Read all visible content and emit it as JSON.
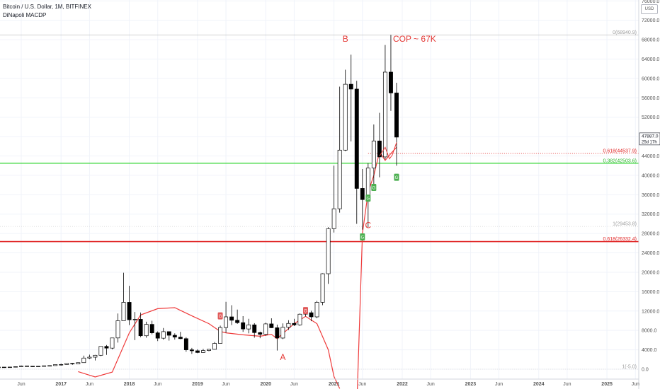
{
  "header": {
    "symbol_line": "Bitcoin / U.S. Dollar, 1M, BITFINEX",
    "indicator_line": "DiNapoli MACDP"
  },
  "currency_label": "USD",
  "current_price": {
    "value": "47887.0",
    "countdown": "25d 17h"
  },
  "colors": {
    "up": "#ffffff",
    "down": "#000000",
    "wick": "#000000",
    "macd": "#ef3b3b",
    "green_line": "#2bd52b",
    "red_line": "#e02323",
    "dotted": "#e02323",
    "marker_red": "#e05a5a",
    "marker_green": "#4caf50"
  },
  "chart_data": {
    "type": "candlestick",
    "title": "Bitcoin / U.S. Dollar, 1M, BITFINEX",
    "y_axis": {
      "min": -2000,
      "max": 76000,
      "ticks": [
        0,
        4000,
        8000,
        12000,
        16000,
        20000,
        24000,
        28000,
        32000,
        36000,
        40000,
        44000,
        48000,
        52000,
        56000,
        60000,
        64000,
        68000,
        72000,
        76000
      ],
      "tick_labels": [
        "0.0",
        "4000.0",
        "8000.0",
        "12000.0",
        "16000.0",
        "20000.0",
        "24000.0",
        "28000.0",
        "32000.0",
        "36000.0",
        "40000.0",
        "44000.0",
        "48000.0",
        "52000.0",
        "56000.0",
        "60000.0",
        "64000.0",
        "68000.0",
        "72000.0",
        "76000.0"
      ]
    },
    "x_axis": {
      "labels": [
        {
          "t": "2016-06",
          "text": "Jun"
        },
        {
          "t": "2017-01",
          "text": "2017"
        },
        {
          "t": "2017-06",
          "text": "Jun"
        },
        {
          "t": "2018-01",
          "text": "2018"
        },
        {
          "t": "2018-06",
          "text": "Jun"
        },
        {
          "t": "2019-01",
          "text": "2019"
        },
        {
          "t": "2019-06",
          "text": "Jun"
        },
        {
          "t": "2020-01",
          "text": "2020"
        },
        {
          "t": "2020-06",
          "text": "Jun"
        },
        {
          "t": "2021-01",
          "text": "2021"
        },
        {
          "t": "2021-06",
          "text": "Jun"
        },
        {
          "t": "2022-01",
          "text": "2022"
        },
        {
          "t": "2022-06",
          "text": "Jun"
        },
        {
          "t": "2023-01",
          "text": "2023"
        },
        {
          "t": "2023-06",
          "text": "Jun"
        },
        {
          "t": "2024-01",
          "text": "2024"
        },
        {
          "t": "2024-06",
          "text": "Jun"
        },
        {
          "t": "2025-01",
          "text": "2025"
        },
        {
          "t": "2025-06",
          "text": "Jun"
        }
      ]
    },
    "candles": [
      {
        "t": "2016-01",
        "o": 430,
        "h": 460,
        "l": 360,
        "c": 370
      },
      {
        "t": "2016-02",
        "o": 370,
        "h": 440,
        "l": 360,
        "c": 435
      },
      {
        "t": "2016-03",
        "o": 435,
        "h": 440,
        "l": 400,
        "c": 415
      },
      {
        "t": "2016-04",
        "o": 415,
        "h": 460,
        "l": 410,
        "c": 448
      },
      {
        "t": "2016-05",
        "o": 448,
        "h": 550,
        "l": 440,
        "c": 530
      },
      {
        "t": "2016-06",
        "o": 530,
        "h": 780,
        "l": 520,
        "c": 670
      },
      {
        "t": "2016-07",
        "o": 670,
        "h": 700,
        "l": 600,
        "c": 620
      },
      {
        "t": "2016-08",
        "o": 620,
        "h": 630,
        "l": 480,
        "c": 575
      },
      {
        "t": "2016-09",
        "o": 575,
        "h": 630,
        "l": 570,
        "c": 610
      },
      {
        "t": "2016-10",
        "o": 610,
        "h": 720,
        "l": 605,
        "c": 700
      },
      {
        "t": "2016-11",
        "o": 700,
        "h": 760,
        "l": 690,
        "c": 745
      },
      {
        "t": "2016-12",
        "o": 745,
        "h": 980,
        "l": 740,
        "c": 965
      },
      {
        "t": "2017-01",
        "o": 965,
        "h": 1150,
        "l": 750,
        "c": 970
      },
      {
        "t": "2017-02",
        "o": 970,
        "h": 1200,
        "l": 920,
        "c": 1190
      },
      {
        "t": "2017-03",
        "o": 1190,
        "h": 1300,
        "l": 900,
        "c": 1080
      },
      {
        "t": "2017-04",
        "o": 1080,
        "h": 1350,
        "l": 1060,
        "c": 1350
      },
      {
        "t": "2017-05",
        "o": 1350,
        "h": 2800,
        "l": 1350,
        "c": 2300
      },
      {
        "t": "2017-06",
        "o": 2300,
        "h": 3000,
        "l": 2100,
        "c": 2480
      },
      {
        "t": "2017-07",
        "o": 2480,
        "h": 2950,
        "l": 1800,
        "c": 2875
      },
      {
        "t": "2017-08",
        "o": 2875,
        "h": 4750,
        "l": 2700,
        "c": 4700
      },
      {
        "t": "2017-09",
        "o": 4700,
        "h": 5000,
        "l": 2950,
        "c": 4350
      },
      {
        "t": "2017-10",
        "o": 4350,
        "h": 6450,
        "l": 4100,
        "c": 6450
      },
      {
        "t": "2017-11",
        "o": 6450,
        "h": 11500,
        "l": 5500,
        "c": 10000
      },
      {
        "t": "2017-12",
        "o": 10000,
        "h": 19900,
        "l": 10000,
        "c": 13800
      },
      {
        "t": "2018-01",
        "o": 13800,
        "h": 17200,
        "l": 9100,
        "c": 10200
      },
      {
        "t": "2018-02",
        "o": 10200,
        "h": 11800,
        "l": 6000,
        "c": 10300
      },
      {
        "t": "2018-03",
        "o": 10300,
        "h": 11700,
        "l": 6600,
        "c": 6900
      },
      {
        "t": "2018-04",
        "o": 6900,
        "h": 9800,
        "l": 6500,
        "c": 9250
      },
      {
        "t": "2018-05",
        "o": 9250,
        "h": 10000,
        "l": 7200,
        "c": 7500
      },
      {
        "t": "2018-06",
        "o": 7500,
        "h": 7800,
        "l": 5800,
        "c": 6400
      },
      {
        "t": "2018-07",
        "o": 6400,
        "h": 8500,
        "l": 6100,
        "c": 7750
      },
      {
        "t": "2018-08",
        "o": 7750,
        "h": 7800,
        "l": 5900,
        "c": 7000
      },
      {
        "t": "2018-09",
        "o": 7000,
        "h": 7400,
        "l": 6100,
        "c": 6620
      },
      {
        "t": "2018-10",
        "o": 6620,
        "h": 7700,
        "l": 6200,
        "c": 6300
      },
      {
        "t": "2018-11",
        "o": 6300,
        "h": 6600,
        "l": 3600,
        "c": 4000
      },
      {
        "t": "2018-12",
        "o": 4000,
        "h": 4400,
        "l": 3150,
        "c": 3800
      },
      {
        "t": "2019-01",
        "o": 3800,
        "h": 4100,
        "l": 3300,
        "c": 3450
      },
      {
        "t": "2019-02",
        "o": 3450,
        "h": 4200,
        "l": 3400,
        "c": 3850
      },
      {
        "t": "2019-03",
        "o": 3850,
        "h": 4150,
        "l": 3700,
        "c": 4100
      },
      {
        "t": "2019-04",
        "o": 4100,
        "h": 5600,
        "l": 4050,
        "c": 5320
      },
      {
        "t": "2019-05",
        "o": 5320,
        "h": 9000,
        "l": 5300,
        "c": 8600
      },
      {
        "t": "2019-06",
        "o": 8600,
        "h": 13900,
        "l": 7500,
        "c": 10800
      },
      {
        "t": "2019-07",
        "o": 10800,
        "h": 13200,
        "l": 9100,
        "c": 10100
      },
      {
        "t": "2019-08",
        "o": 10100,
        "h": 12300,
        "l": 9350,
        "c": 9600
      },
      {
        "t": "2019-09",
        "o": 9600,
        "h": 10950,
        "l": 7700,
        "c": 8300
      },
      {
        "t": "2019-10",
        "o": 8300,
        "h": 10400,
        "l": 7400,
        "c": 9150
      },
      {
        "t": "2019-11",
        "o": 9150,
        "h": 9500,
        "l": 6500,
        "c": 7550
      },
      {
        "t": "2019-12",
        "o": 7550,
        "h": 7750,
        "l": 6400,
        "c": 7200
      },
      {
        "t": "2020-01",
        "o": 7200,
        "h": 9600,
        "l": 6900,
        "c": 9350
      },
      {
        "t": "2020-02",
        "o": 9350,
        "h": 10500,
        "l": 8500,
        "c": 8550
      },
      {
        "t": "2020-03",
        "o": 8550,
        "h": 9200,
        "l": 3850,
        "c": 6430
      },
      {
        "t": "2020-04",
        "o": 6430,
        "h": 9450,
        "l": 6200,
        "c": 8650
      },
      {
        "t": "2020-05",
        "o": 8650,
        "h": 10100,
        "l": 8100,
        "c": 9450
      },
      {
        "t": "2020-06",
        "o": 9450,
        "h": 10400,
        "l": 8900,
        "c": 9140
      },
      {
        "t": "2020-07",
        "o": 9140,
        "h": 11500,
        "l": 8950,
        "c": 11350
      },
      {
        "t": "2020-08",
        "o": 11350,
        "h": 12450,
        "l": 10900,
        "c": 11650
      },
      {
        "t": "2020-09",
        "o": 11650,
        "h": 12050,
        "l": 9900,
        "c": 10800
      },
      {
        "t": "2020-10",
        "o": 10800,
        "h": 14100,
        "l": 10500,
        "c": 13800
      },
      {
        "t": "2020-11",
        "o": 13800,
        "h": 19800,
        "l": 13200,
        "c": 19700
      },
      {
        "t": "2020-12",
        "o": 19700,
        "h": 29300,
        "l": 17600,
        "c": 29000
      },
      {
        "t": "2021-01",
        "o": 29000,
        "h": 42000,
        "l": 28200,
        "c": 33100
      },
      {
        "t": "2021-02",
        "o": 33100,
        "h": 58300,
        "l": 32300,
        "c": 45200
      },
      {
        "t": "2021-03",
        "o": 45200,
        "h": 61800,
        "l": 45000,
        "c": 58800
      },
      {
        "t": "2021-04",
        "o": 58800,
        "h": 64900,
        "l": 47000,
        "c": 57800
      },
      {
        "t": "2021-05",
        "o": 57800,
        "h": 59500,
        "l": 30000,
        "c": 37300
      },
      {
        "t": "2021-06",
        "o": 37300,
        "h": 41300,
        "l": 28800,
        "c": 35000
      },
      {
        "t": "2021-07",
        "o": 35000,
        "h": 42500,
        "l": 29300,
        "c": 41500
      },
      {
        "t": "2021-08",
        "o": 41500,
        "h": 50500,
        "l": 37300,
        "c": 47100
      },
      {
        "t": "2021-09",
        "o": 47100,
        "h": 52900,
        "l": 39600,
        "c": 43800
      },
      {
        "t": "2021-10",
        "o": 43800,
        "h": 66900,
        "l": 43300,
        "c": 61300
      },
      {
        "t": "2021-11",
        "o": 61300,
        "h": 69000,
        "l": 53300,
        "c": 57000
      },
      {
        "t": "2021-12",
        "o": 57000,
        "h": 59100,
        "l": 42000,
        "c": 47887
      }
    ],
    "macd_line": [
      {
        "t": "2017-04",
        "v": -500
      },
      {
        "t": "2017-07",
        "v": -1600
      },
      {
        "t": "2017-10",
        "v": -600
      },
      {
        "t": "2018-01",
        "v": 7500
      },
      {
        "t": "2018-03",
        "v": 11200
      },
      {
        "t": "2018-06",
        "v": 12500
      },
      {
        "t": "2018-09",
        "v": 12700
      },
      {
        "t": "2018-12",
        "v": 11000
      },
      {
        "t": "2019-03",
        "v": 9400
      },
      {
        "t": "2019-05",
        "v": 7800
      },
      {
        "t": "2019-06",
        "v": 7500
      },
      {
        "t": "2019-09",
        "v": 7100
      },
      {
        "t": "2019-12",
        "v": 6800
      },
      {
        "t": "2020-02",
        "v": 7200
      },
      {
        "t": "2020-03",
        "v": 6300
      },
      {
        "t": "2020-06",
        "v": 9400
      },
      {
        "t": "2020-08",
        "v": 10900
      },
      {
        "t": "2020-10",
        "v": 9400
      },
      {
        "t": "2020-12",
        "v": 4000
      },
      {
        "t": "2021-01",
        "v": -1500
      },
      {
        "t": "2021-02",
        "v": -4000
      },
      {
        "t": "2021-03",
        "v": -8000
      },
      {
        "t": "2021-05",
        "v": -8000
      },
      {
        "t": "2021-06",
        "v": 28000
      },
      {
        "t": "2021-07",
        "v": 36500
      },
      {
        "t": "2021-08",
        "v": 40000
      },
      {
        "t": "2021-09",
        "v": 44800
      },
      {
        "t": "2021-10",
        "v": 43100
      },
      {
        "t": "2021-11",
        "v": 44500
      },
      {
        "t": "2021-12",
        "v": 45800
      }
    ],
    "levels": [
      {
        "price": 68940.9,
        "label": "0(68940.9)",
        "kind": "fib-top"
      },
      {
        "price": 44537.9,
        "label": "0.618(44537.9)",
        "kind": "dotted-red"
      },
      {
        "price": 42503.6,
        "label": "0.382(42503.6)",
        "kind": "green"
      },
      {
        "price": 29453.8,
        "label": "1(29453.8)",
        "kind": "grey"
      },
      {
        "price": 26332.4,
        "label": "0.618(26332.4)",
        "kind": "red"
      },
      {
        "price": -5.0,
        "label": "1(-5.0)",
        "kind": "grey"
      }
    ],
    "markers": [
      {
        "t": "2019-05",
        "price": 11000,
        "color": "red",
        "text": "G"
      },
      {
        "t": "2020-08",
        "price": 12100,
        "color": "red",
        "text": "G"
      },
      {
        "t": "2021-06",
        "price": 27300,
        "color": "green",
        "text": "G"
      },
      {
        "t": "2021-07",
        "price": 35300,
        "color": "green",
        "text": "G"
      },
      {
        "t": "2021-08",
        "price": 37500,
        "color": "green",
        "text": "G"
      },
      {
        "t": "2021-12",
        "price": 39600,
        "color": "green",
        "text": "G"
      }
    ],
    "annotations": [
      {
        "t": "2020-04",
        "price": 1900,
        "text": "A"
      },
      {
        "t": "2021-03",
        "price": 67600,
        "text": "B"
      },
      {
        "t": "2021-06",
        "price": 29100,
        "text": "C"
      },
      {
        "t": "2021-11",
        "price": 67600,
        "text": "COP ~ 67K"
      }
    ]
  }
}
